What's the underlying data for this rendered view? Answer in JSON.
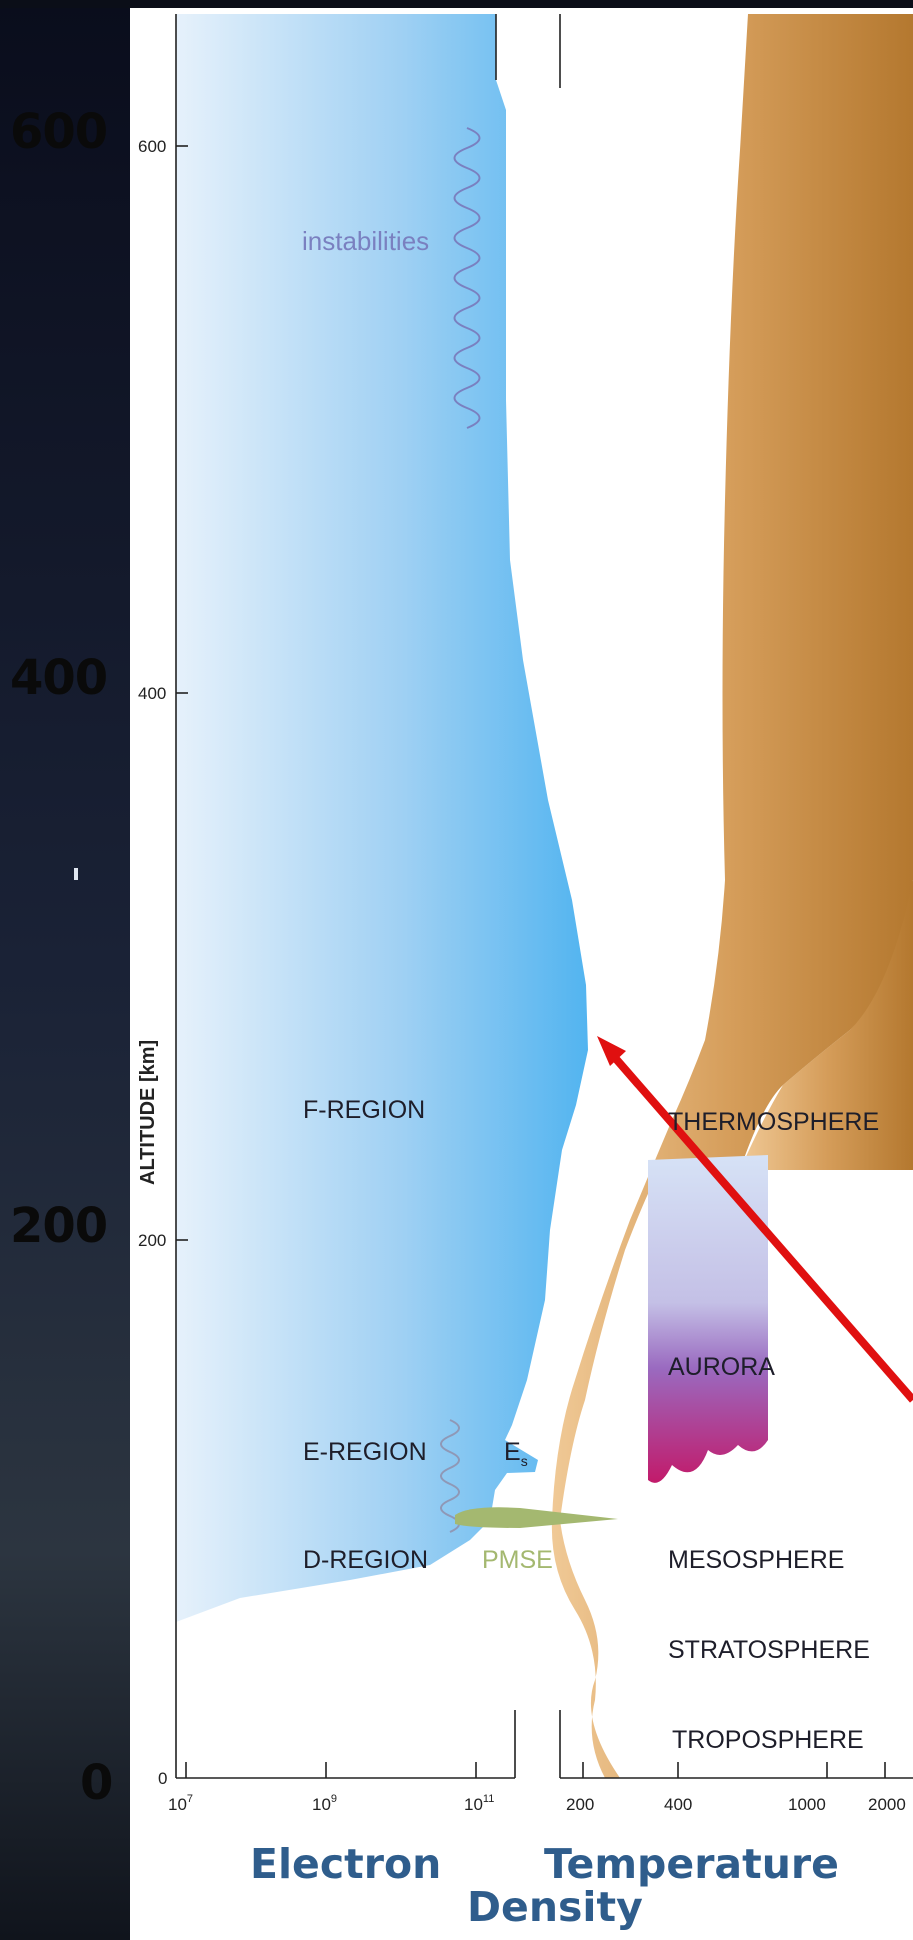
{
  "colors": {
    "density_blue": "#5ab8f2",
    "temperature_tan": "#d09a58",
    "aurora_top": "#d6e2f6",
    "aurora_mid": "#9a6ac0",
    "aurora_bottom": "#c21a6a",
    "pmse_green": "#a4b870",
    "instability_purple": "#7a80c0",
    "arrow_red": "#e01010",
    "bottom_label_blue": "#2f5d8c"
  },
  "altitude_axis": {
    "label": "ALTITUDE [km]",
    "small_ticks": [
      "600",
      "400",
      "200",
      "0"
    ],
    "big_ticks": [
      "600",
      "400",
      "200",
      "0"
    ]
  },
  "density_axis": {
    "ticks": [
      {
        "base": "10",
        "exp": "7"
      },
      {
        "base": "10",
        "exp": "9"
      },
      {
        "base": "10",
        "exp": "11"
      }
    ]
  },
  "temperature_axis": {
    "ticks": [
      "200",
      "400",
      "1000",
      "2000"
    ]
  },
  "regions": {
    "instabilities": "instabilities",
    "f_region": "F-REGION",
    "e_region": "E-REGION",
    "d_region": "D-REGION",
    "es_base": "E",
    "es_sub": "s",
    "pmse": "PMSE"
  },
  "layers": {
    "thermosphere": "THERMOSPHERE",
    "aurora": "AURORA",
    "mesosphere": "MESOSPHERE",
    "stratosphere": "STRATOSPHERE",
    "troposphere": "TROPOSPHERE"
  },
  "bottom_labels": {
    "electron": "Electron",
    "density": "Density",
    "temperature": "Temperature"
  }
}
